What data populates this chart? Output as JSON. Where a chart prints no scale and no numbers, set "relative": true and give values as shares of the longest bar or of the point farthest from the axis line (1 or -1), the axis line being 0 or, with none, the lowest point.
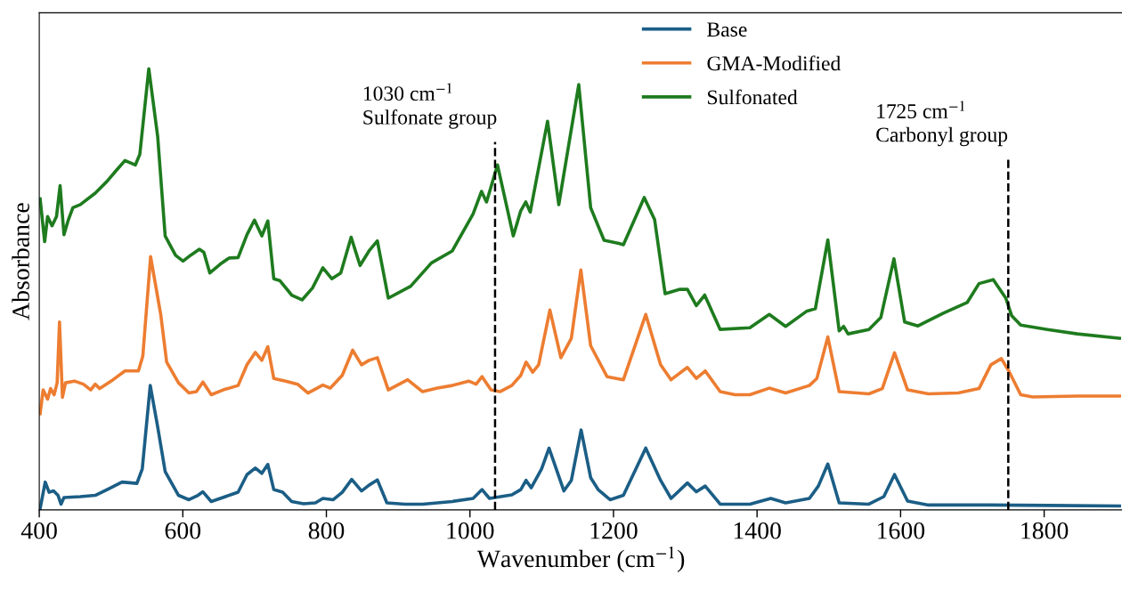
{
  "chart_data": {
    "type": "line",
    "relative": true,
    "xlabel": "Wavenumber (cm$^{−1}$)",
    "ylabel": "Absorbance",
    "xlim": [
      400,
      1910
    ],
    "xticks": [
      400,
      600,
      800,
      1000,
      1200,
      1400,
      1600,
      1800
    ],
    "legend": "top",
    "grid": false,
    "line_style": "solid",
    "marker": "none",
    "series": [
      {
        "name": "Base",
        "color": "#1b5e86",
        "x": [
          401.2,
          408.3,
          413.7,
          419.9,
          426.1,
          430.3,
          434.4,
          457.2,
          478,
          494.5,
          515.3,
          536,
          543.5,
          554.6,
          565,
          575.4,
          594,
          608.5,
          621,
          628,
          639.6,
          664.5,
          677,
          689.4,
          701,
          710.1,
          718.4,
          726.7,
          739.1,
          751.6,
          768.2,
          784.7,
          795.1,
          809.6,
          822.1,
          835.3,
          849,
          859.4,
          871,
          884.3,
          909.9,
          934,
          975.4,
          1004.4,
          1016.9,
          1027.2,
          1058.3,
          1070.8,
          1078.2,
          1085.3,
          1099.8,
          1110.2,
          1130.9,
          1141.3,
          1154.9,
          1168.2,
          1178.6,
          1195.2,
          1213.8,
          1244.9,
          1265.6,
          1280.2,
          1303,
          1315.4,
          1327.8,
          1348.6,
          1390,
          1419.1,
          1439.8,
          1472.9,
          1485.4,
          1498.6,
          1514.4,
          1555.8,
          1576.6,
          1591.5,
          1609.7,
          1638.8,
          1721.7,
          1804.6,
          1904.9
        ],
        "values": [
          0.003,
          0.063,
          0.04,
          0.043,
          0.033,
          0.013,
          0.028,
          0.03,
          0.033,
          0.046,
          0.063,
          0.06,
          0.093,
          0.282,
          0.188,
          0.087,
          0.033,
          0.023,
          0.033,
          0.041,
          0.019,
          0.033,
          0.04,
          0.08,
          0.095,
          0.083,
          0.103,
          0.046,
          0.04,
          0.019,
          0.014,
          0.016,
          0.026,
          0.023,
          0.04,
          0.069,
          0.043,
          0.056,
          0.068,
          0.016,
          0.013,
          0.013,
          0.019,
          0.026,
          0.046,
          0.026,
          0.034,
          0.046,
          0.067,
          0.05,
          0.093,
          0.14,
          0.043,
          0.067,
          0.181,
          0.073,
          0.046,
          0.023,
          0.033,
          0.14,
          0.067,
          0.026,
          0.061,
          0.041,
          0.054,
          0.013,
          0.013,
          0.026,
          0.016,
          0.026,
          0.054,
          0.104,
          0.016,
          0.013,
          0.03,
          0.08,
          0.02,
          0.011,
          0.011,
          0.01,
          0.009
        ]
      },
      {
        "name": "GMA-Modified",
        "color": "#ed7d31",
        "x": [
          401.2,
          405.4,
          411.6,
          415.8,
          420.7,
          424.9,
          428.2,
          432.3,
          436.5,
          448.9,
          461.4,
          471.7,
          477.9,
          484.2,
          502.8,
          519.4,
          538.1,
          544.3,
          555.1,
          569.2,
          577.5,
          594,
          608.5,
          618.9,
          628,
          639.6,
          656.2,
          677,
          689.4,
          701,
          710.1,
          718.4,
          726.7,
          743.3,
          759.9,
          774.4,
          795.1,
          805.5,
          822.1,
          836.6,
          849,
          859.4,
          871,
          886.3,
          913.2,
          934,
          954.7,
          975.4,
          998.2,
          1008.6,
          1016.9,
          1029.3,
          1041.8,
          1058.3,
          1070.8,
          1078.2,
          1087.4,
          1095.7,
          1111.4,
          1126.7,
          1141.3,
          1154.5,
          1168.2,
          1191,
          1213.8,
          1244.9,
          1265.6,
          1280.2,
          1303,
          1315.4,
          1327.8,
          1348.6,
          1369.3,
          1390,
          1417,
          1439.8,
          1472.9,
          1483.3,
          1498.6,
          1514.4,
          1555.8,
          1574.5,
          1591.5,
          1609.7,
          1638.8,
          1680.2,
          1709.2,
          1725.8,
          1740.3,
          1750.7,
          1767.3,
          1783.9,
          1846.1,
          1904.9
        ],
        "values": [
          0.218,
          0.272,
          0.251,
          0.275,
          0.261,
          0.288,
          0.426,
          0.255,
          0.288,
          0.292,
          0.285,
          0.272,
          0.285,
          0.275,
          0.295,
          0.315,
          0.315,
          0.349,
          0.574,
          0.443,
          0.335,
          0.288,
          0.265,
          0.268,
          0.29,
          0.261,
          0.272,
          0.282,
          0.329,
          0.357,
          0.339,
          0.37,
          0.298,
          0.292,
          0.285,
          0.265,
          0.283,
          0.276,
          0.305,
          0.362,
          0.329,
          0.339,
          0.345,
          0.272,
          0.295,
          0.268,
          0.276,
          0.282,
          0.292,
          0.285,
          0.302,
          0.272,
          0.268,
          0.282,
          0.305,
          0.335,
          0.312,
          0.329,
          0.453,
          0.345,
          0.389,
          0.544,
          0.372,
          0.302,
          0.295,
          0.443,
          0.329,
          0.295,
          0.323,
          0.298,
          0.315,
          0.268,
          0.261,
          0.261,
          0.276,
          0.265,
          0.282,
          0.298,
          0.392,
          0.268,
          0.263,
          0.275,
          0.356,
          0.272,
          0.263,
          0.265,
          0.275,
          0.329,
          0.343,
          0.315,
          0.261,
          0.256,
          0.258,
          0.258
        ]
      },
      {
        "name": "Sulfonated",
        "color": "#1e7b1e",
        "x": [
          401.2,
          407.5,
          411.6,
          417.8,
          424,
          429,
          434.4,
          440.6,
          446.8,
          457.2,
          478,
          494.5,
          507,
          519.4,
          533.9,
          540.1,
          552.6,
          565,
          575.4,
          589.9,
          600.3,
          610.6,
          623.1,
          629.3,
          637.6,
          652.1,
          664.5,
          677,
          689.4,
          699.8,
          710.1,
          718.4,
          726.7,
          735,
          751.6,
          766.1,
          780.6,
          795.1,
          807.5,
          820,
          834.5,
          846.9,
          859.4,
          871,
          886.3,
          917.4,
          946.4,
          975.4,
          1004.4,
          1016.1,
          1023.1,
          1038.4,
          1060.4,
          1070.8,
          1077.8,
          1084,
          1108.1,
          1123.8,
          1151.6,
          1168.2,
          1186.9,
          1207.6,
          1213.8,
          1242.8,
          1257.3,
          1271.9,
          1292.6,
          1303,
          1315.4,
          1327,
          1348.6,
          1390,
          1417,
          1439.8,
          1468.8,
          1481.2,
          1498.6,
          1514.4,
          1520.6,
          1526.8,
          1555.8,
          1572.4,
          1590.7,
          1605.6,
          1624.2,
          1659.5,
          1692.7,
          1709.2,
          1729.1,
          1746.6,
          1754.8,
          1767.3,
          1804.6,
          1846.1,
          1904.9
        ],
        "values": [
          0.705,
          0.608,
          0.665,
          0.644,
          0.665,
          0.735,
          0.624,
          0.658,
          0.685,
          0.692,
          0.718,
          0.745,
          0.769,
          0.792,
          0.782,
          0.806,
          1,
          0.846,
          0.621,
          0.577,
          0.564,
          0.577,
          0.591,
          0.584,
          0.537,
          0.557,
          0.571,
          0.572,
          0.624,
          0.657,
          0.621,
          0.655,
          0.524,
          0.52,
          0.487,
          0.476,
          0.503,
          0.549,
          0.524,
          0.537,
          0.618,
          0.554,
          0.587,
          0.61,
          0.48,
          0.507,
          0.56,
          0.587,
          0.671,
          0.722,
          0.698,
          0.782,
          0.621,
          0.678,
          0.698,
          0.675,
          0.881,
          0.692,
          0.964,
          0.685,
          0.611,
          0.604,
          0.601,
          0.708,
          0.658,
          0.49,
          0.5,
          0.5,
          0.463,
          0.487,
          0.409,
          0.413,
          0.443,
          0.416,
          0.45,
          0.456,
          0.612,
          0.406,
          0.416,
          0.399,
          0.409,
          0.436,
          0.569,
          0.426,
          0.417,
          0.446,
          0.47,
          0.513,
          0.522,
          0.48,
          0.44,
          0.419,
          0.409,
          0.399,
          0.389
        ]
      }
    ],
    "ref_lines": [
      {
        "axis": "x",
        "value": 1035,
        "label": "1030 cm$^{−1}$\nSulfonate group",
        "color": "#000000",
        "line_style": "dashed"
      },
      {
        "axis": "x",
        "value": 1750,
        "label": "1725 cm$^{−1}$\nCarbonyl group",
        "color": "#000000",
        "line_style": "dashed"
      }
    ]
  }
}
